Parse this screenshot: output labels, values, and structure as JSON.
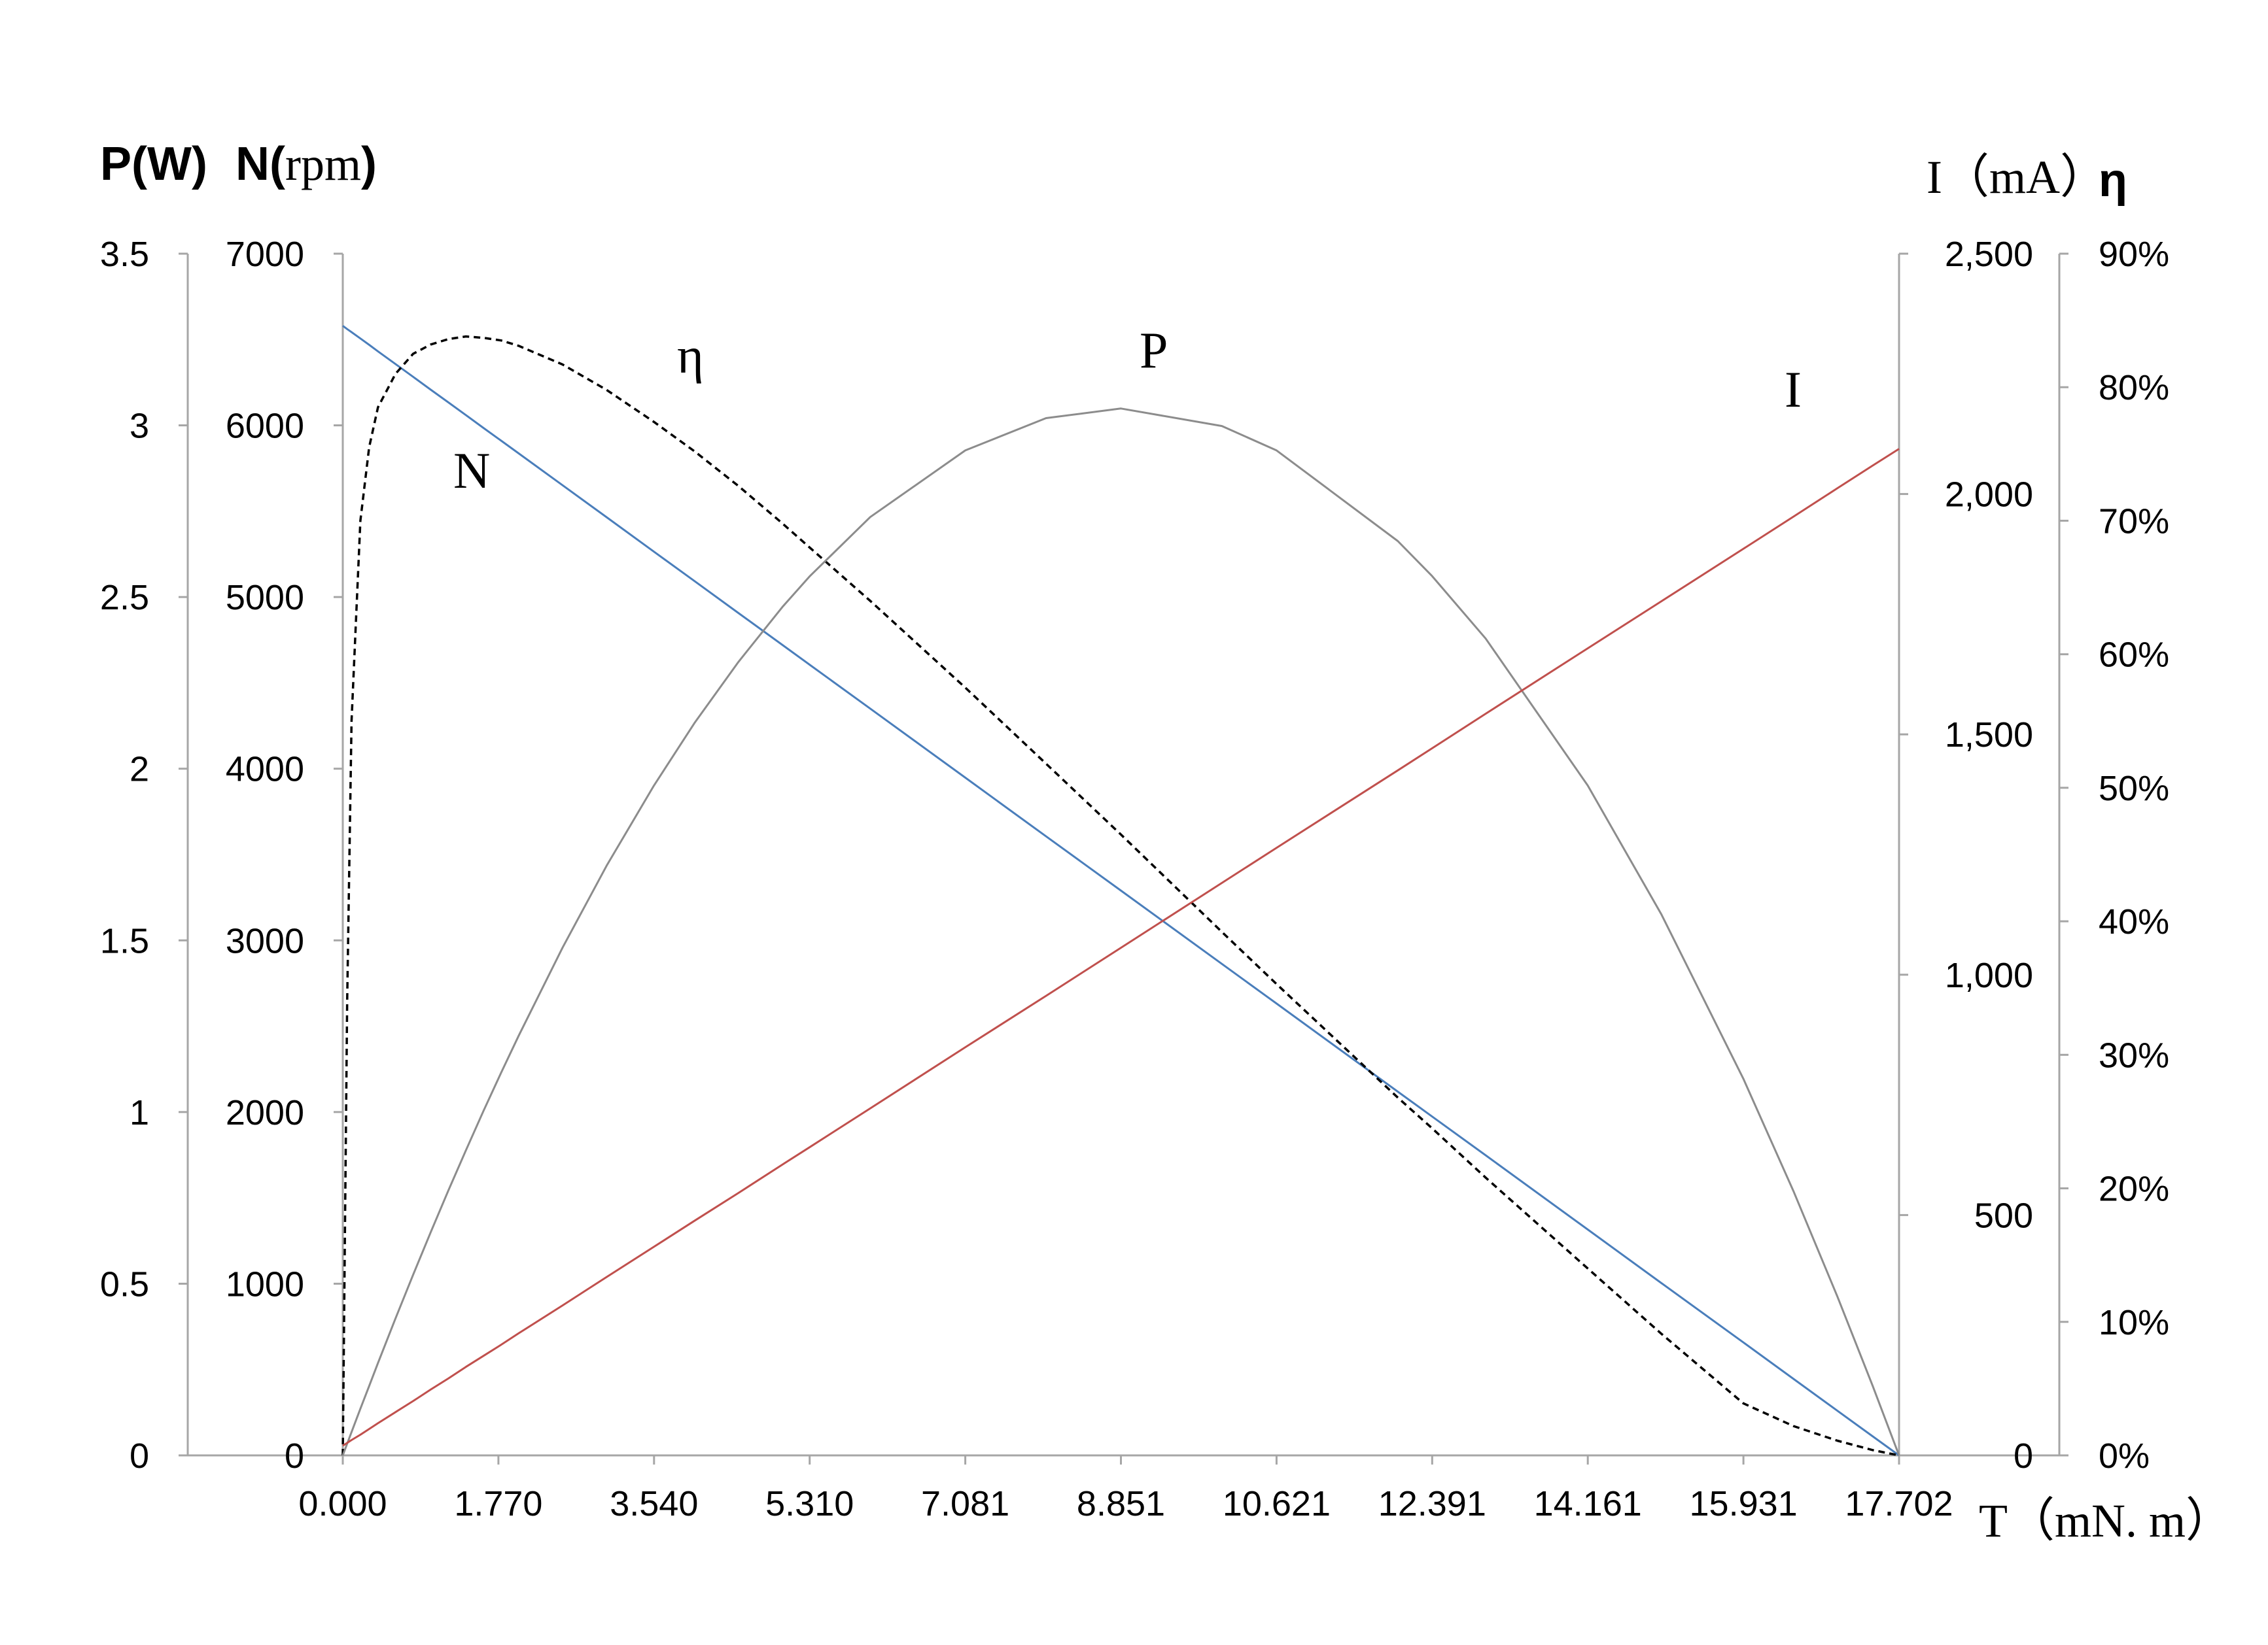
{
  "chart_data": {
    "type": "line",
    "x": [
      0,
      0.05,
      0.1,
      0.2,
      0.3,
      0.4,
      0.6,
      0.8,
      1.0,
      1.2,
      1.4,
      1.6,
      1.8,
      2.0,
      2.5,
      3.0,
      3.54,
      4.0,
      4.5,
      5.0,
      5.31,
      6.0,
      7.081,
      8.0,
      8.851,
      10.0,
      10.621,
      12.0,
      12.391,
      13.0,
      14.161,
      15.0,
      15.931,
      16.5,
      17.0,
      17.4,
      17.702
    ],
    "x_label": "T（mN. m）",
    "x_ticks": [
      "0.000",
      "1.770",
      "3.540",
      "5.310",
      "7.081",
      "8.851",
      "10.621",
      "12.391",
      "14.161",
      "15.931",
      "17.702"
    ],
    "xlim": [
      0,
      17.702
    ],
    "axes": {
      "power": {
        "label_bold": "P(W)",
        "ylim": [
          0,
          3.5
        ],
        "ticks": [
          "0",
          "0.5",
          "1",
          "1.5",
          "2",
          "2.5",
          "3",
          "3.5"
        ]
      },
      "speed": {
        "label_bold": "N(",
        "label_unit": "rpm",
        "label_close": ")",
        "ylim": [
          0,
          7000
        ],
        "ticks": [
          "0",
          "1000",
          "2000",
          "3000",
          "4000",
          "5000",
          "6000",
          "7000"
        ]
      },
      "current": {
        "label": "I（mA）",
        "ylim": [
          0,
          2500
        ],
        "ticks": [
          "0",
          "500",
          "1,000",
          "1,500",
          "2,000",
          "2,500"
        ]
      },
      "efficiency": {
        "label": "η",
        "ylim": [
          0,
          0.9
        ],
        "ticks": [
          "0%",
          "10%",
          "20%",
          "30%",
          "40%",
          "50%",
          "60%",
          "70%",
          "80%",
          "90%"
        ]
      }
    },
    "series": [
      {
        "name": "N",
        "axis": "speed",
        "color": "#4a7ebb",
        "values": [
          6580,
          6561,
          6543,
          6506,
          6469,
          6431,
          6357,
          6283,
          6208,
          6134,
          6060,
          5985,
          5911,
          5837,
          5651,
          5465,
          5264,
          5093,
          4907,
          4721,
          4606,
          4350,
          3948,
          3606,
          3290,
          2863,
          2632,
          2119,
          1974,
          1748,
          1316,
          1003,
          658,
          446,
          260,
          112,
          0
        ]
      },
      {
        "name": "η",
        "axis": "efficiency",
        "color": "#000000",
        "dashed": true,
        "values": [
          0,
          0.34,
          0.55,
          0.7,
          0.755,
          0.785,
          0.81,
          0.825,
          0.832,
          0.836,
          0.838,
          0.837,
          0.835,
          0.831,
          0.817,
          0.798,
          0.774,
          0.752,
          0.726,
          0.698,
          0.68,
          0.64,
          0.575,
          0.518,
          0.465,
          0.392,
          0.353,
          0.268,
          0.245,
          0.208,
          0.14,
          0.091,
          0.039,
          0.022,
          0.011,
          0.004,
          0
        ]
      },
      {
        "name": "P",
        "axis": "power",
        "color": "#8c8c8c",
        "values": [
          0,
          0.034,
          0.068,
          0.136,
          0.202,
          0.269,
          0.399,
          0.526,
          0.65,
          0.771,
          0.888,
          1.003,
          1.114,
          1.222,
          1.479,
          1.717,
          1.951,
          2.133,
          2.311,
          2.471,
          2.56,
          2.733,
          2.927,
          3.021,
          3.049,
          2.998,
          2.927,
          2.663,
          2.561,
          2.379,
          1.951,
          1.575,
          1.097,
          0.77,
          0.463,
          0.204,
          0
        ]
      },
      {
        "name": "I",
        "axis": "current",
        "color": "#c0504d",
        "values": [
          20,
          26,
          32,
          43,
          55,
          67,
          90,
          113,
          137,
          160,
          184,
          207,
          230,
          254,
          312,
          371,
          434,
          488,
          546,
          605,
          641,
          722,
          849,
          956,
          1056,
          1191,
          1264,
          1425,
          1471,
          1543,
          1679,
          1777,
          1886,
          1953,
          2012,
          2059,
          2094
        ]
      }
    ],
    "curve_labels": [
      "N",
      "η",
      "P",
      "I"
    ]
  }
}
